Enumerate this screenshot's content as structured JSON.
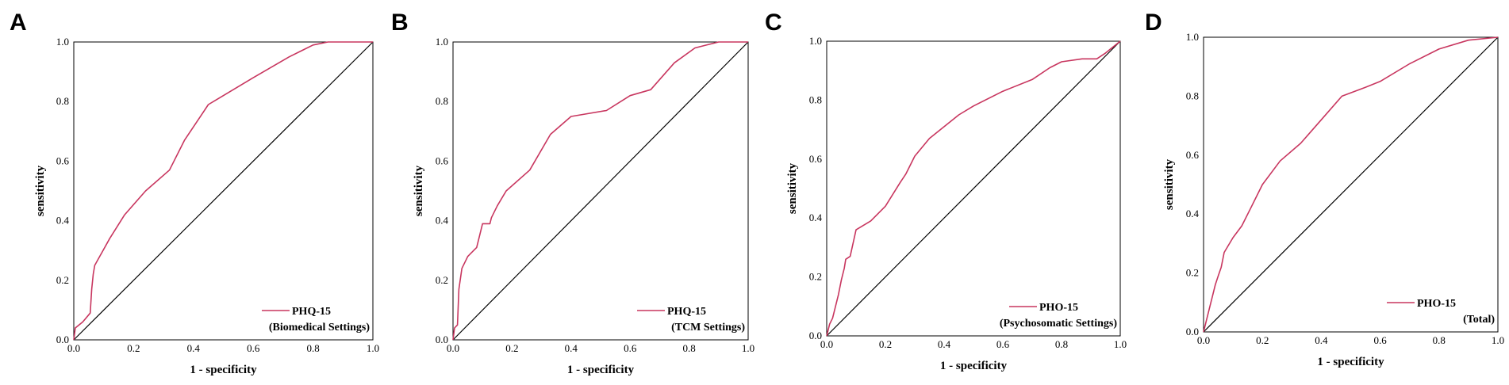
{
  "figure": {
    "description_color_curve": "#c8365f",
    "color_axis": "#000000"
  },
  "chart_data": [
    {
      "type": "line",
      "panel": "A",
      "xlabel": "1 - specificity",
      "ylabel": "sensitivity",
      "xlim": [
        0,
        1
      ],
      "ylim": [
        0,
        1
      ],
      "xticks": [
        "0.0",
        "0.2",
        "0.4",
        "0.6",
        "0.8",
        "1.0"
      ],
      "yticks": [
        "0.0",
        "0.2",
        "0.4",
        "0.6",
        "0.8",
        "1.0"
      ],
      "legend": {
        "line1": "PHQ-15",
        "line2": "(Biomedical Settings)",
        "position": "bottom-right"
      },
      "reference_line": {
        "x": [
          0,
          1
        ],
        "y": [
          0,
          1
        ]
      },
      "series": [
        {
          "name": "PHQ-15 (Biomedical Settings)",
          "x": [
            0.0,
            0.005,
            0.03,
            0.055,
            0.06,
            0.065,
            0.07,
            0.12,
            0.17,
            0.24,
            0.32,
            0.37,
            0.45,
            0.6,
            0.72,
            0.8,
            0.85,
            1.0
          ],
          "y": [
            0.0,
            0.04,
            0.06,
            0.09,
            0.17,
            0.22,
            0.25,
            0.34,
            0.42,
            0.5,
            0.57,
            0.67,
            0.79,
            0.88,
            0.95,
            0.99,
            1.0,
            1.0
          ]
        }
      ]
    },
    {
      "type": "line",
      "panel": "B",
      "xlabel": "1 - specificity",
      "ylabel": "sensitivity",
      "xlim": [
        0,
        1
      ],
      "ylim": [
        0,
        1
      ],
      "xticks": [
        "0.0",
        "0.2",
        "0.4",
        "0.6",
        "0.8",
        "1.0"
      ],
      "yticks": [
        "0.0",
        "0.2",
        "0.4",
        "0.6",
        "0.8",
        "1.0"
      ],
      "legend": {
        "line1": "PHQ-15",
        "line2": "(TCM Settings)",
        "position": "bottom-right"
      },
      "reference_line": {
        "x": [
          0,
          1
        ],
        "y": [
          0,
          1
        ]
      },
      "series": [
        {
          "name": "PHQ-15 (TCM Settings)",
          "x": [
            0.0,
            0.005,
            0.015,
            0.02,
            0.03,
            0.05,
            0.07,
            0.08,
            0.1,
            0.125,
            0.13,
            0.15,
            0.18,
            0.26,
            0.33,
            0.4,
            0.52,
            0.6,
            0.67,
            0.75,
            0.82,
            0.9,
            1.0
          ],
          "y": [
            0.0,
            0.04,
            0.05,
            0.17,
            0.24,
            0.28,
            0.3,
            0.31,
            0.39,
            0.39,
            0.41,
            0.45,
            0.5,
            0.57,
            0.69,
            0.75,
            0.77,
            0.82,
            0.84,
            0.93,
            0.98,
            1.0,
            1.0
          ]
        }
      ]
    },
    {
      "type": "line",
      "panel": "C",
      "xlabel": "1 - specificity",
      "ylabel": "sensitivity",
      "xlim": [
        0,
        1
      ],
      "ylim": [
        0,
        1
      ],
      "xticks": [
        "0.0",
        "0.2",
        "0.4",
        "0.6",
        "0.8",
        "1.0"
      ],
      "yticks": [
        "0.0",
        "0.2",
        "0.4",
        "0.6",
        "0.8",
        "1.0"
      ],
      "legend": {
        "line1": "PHO-15",
        "line2": "(Psychosomatic Settings)",
        "position": "bottom-right"
      },
      "reference_line": {
        "x": [
          0,
          1
        ],
        "y": [
          0,
          1
        ]
      },
      "series": [
        {
          "name": "PHO-15 (Psychosomatic Settings)",
          "x": [
            0.0,
            0.01,
            0.02,
            0.04,
            0.05,
            0.06,
            0.065,
            0.08,
            0.1,
            0.15,
            0.2,
            0.25,
            0.27,
            0.3,
            0.35,
            0.4,
            0.45,
            0.5,
            0.6,
            0.7,
            0.76,
            0.8,
            0.87,
            0.92,
            0.95,
            1.0
          ],
          "y": [
            0.0,
            0.04,
            0.06,
            0.14,
            0.19,
            0.23,
            0.26,
            0.27,
            0.36,
            0.39,
            0.44,
            0.52,
            0.55,
            0.61,
            0.67,
            0.71,
            0.75,
            0.78,
            0.83,
            0.87,
            0.91,
            0.93,
            0.94,
            0.94,
            0.96,
            1.0
          ]
        }
      ]
    },
    {
      "type": "line",
      "panel": "D",
      "xlabel": "1 - specificity",
      "ylabel": "sensitivity",
      "xlim": [
        0,
        1
      ],
      "ylim": [
        0,
        1
      ],
      "xticks": [
        "0.0",
        "0.2",
        "0.4",
        "0.6",
        "0.8",
        "1.0"
      ],
      "yticks": [
        "0.0",
        "0.2",
        "0.4",
        "0.6",
        "0.8",
        "1.0"
      ],
      "legend": {
        "line1": "PHO-15",
        "line2": "(Total)",
        "position": "bottom-right"
      },
      "reference_line": {
        "x": [
          0,
          1
        ],
        "y": [
          0,
          1
        ]
      },
      "series": [
        {
          "name": "PHO-15 (Total)",
          "x": [
            0.0,
            0.01,
            0.02,
            0.03,
            0.04,
            0.05,
            0.06,
            0.07,
            0.1,
            0.13,
            0.16,
            0.2,
            0.26,
            0.33,
            0.4,
            0.47,
            0.55,
            0.6,
            0.7,
            0.8,
            0.9,
            1.0
          ],
          "y": [
            0.0,
            0.04,
            0.08,
            0.12,
            0.16,
            0.19,
            0.22,
            0.27,
            0.32,
            0.36,
            0.42,
            0.5,
            0.58,
            0.64,
            0.72,
            0.8,
            0.83,
            0.85,
            0.91,
            0.96,
            0.99,
            1.0
          ]
        }
      ]
    }
  ]
}
